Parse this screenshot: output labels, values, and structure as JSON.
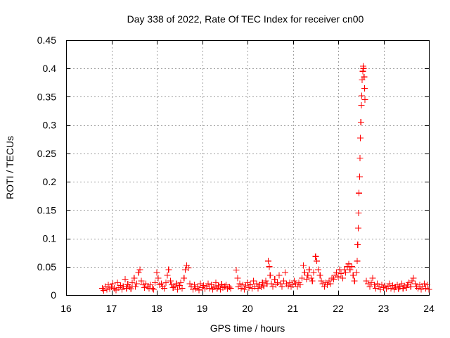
{
  "chart_data": {
    "type": "scatter",
    "title": "Day 338 of 2022, Rate Of TEC Index for receiver cn00",
    "xlabel": "GPS time / hours",
    "ylabel": "ROTI / TECUs",
    "xlim": [
      16,
      24
    ],
    "ylim": [
      0,
      0.45
    ],
    "x_ticks": [
      16,
      17,
      18,
      19,
      20,
      21,
      22,
      23,
      24
    ],
    "x_tick_labels": [
      "16",
      "17",
      "18",
      "19",
      "20",
      "21",
      "22",
      "23",
      "24"
    ],
    "y_ticks": [
      0,
      0.05,
      0.1,
      0.15,
      0.2,
      0.25,
      0.3,
      0.35,
      0.4,
      0.45
    ],
    "y_tick_labels": [
      "0",
      "0.05",
      "0.1",
      "0.15",
      "0.2",
      "0.25",
      "0.3",
      "0.35",
      "0.4",
      "0.45"
    ],
    "grid": true,
    "marker": "+",
    "color": "#ff0000",
    "series": [
      {
        "name": "ROTI",
        "points": [
          [
            16.8,
            0.012
          ],
          [
            16.83,
            0.008
          ],
          [
            16.86,
            0.015
          ],
          [
            16.9,
            0.01
          ],
          [
            16.93,
            0.018
          ],
          [
            16.96,
            0.011
          ],
          [
            17.0,
            0.014
          ],
          [
            17.03,
            0.02
          ],
          [
            17.06,
            0.012
          ],
          [
            17.1,
            0.009
          ],
          [
            17.13,
            0.022
          ],
          [
            17.16,
            0.013
          ],
          [
            17.2,
            0.017
          ],
          [
            17.23,
            0.01
          ],
          [
            17.26,
            0.015
          ],
          [
            17.3,
            0.028
          ],
          [
            17.33,
            0.012
          ],
          [
            17.36,
            0.019
          ],
          [
            17.4,
            0.014
          ],
          [
            17.43,
            0.011
          ],
          [
            17.46,
            0.022
          ],
          [
            17.5,
            0.03
          ],
          [
            17.53,
            0.015
          ],
          [
            17.56,
            0.02
          ],
          [
            17.6,
            0.04
          ],
          [
            17.63,
            0.045
          ],
          [
            17.66,
            0.025
          ],
          [
            17.7,
            0.018
          ],
          [
            17.73,
            0.013
          ],
          [
            17.76,
            0.02
          ],
          [
            17.8,
            0.015
          ],
          [
            17.83,
            0.012
          ],
          [
            17.86,
            0.018
          ],
          [
            17.9,
            0.012
          ],
          [
            17.93,
            0.01
          ],
          [
            17.96,
            0.022
          ],
          [
            18.0,
            0.04
          ],
          [
            18.03,
            0.03
          ],
          [
            18.06,
            0.018
          ],
          [
            18.1,
            0.02
          ],
          [
            18.13,
            0.015
          ],
          [
            18.16,
            0.012
          ],
          [
            18.2,
            0.022
          ],
          [
            18.23,
            0.035
          ],
          [
            18.26,
            0.045
          ],
          [
            18.3,
            0.025
          ],
          [
            18.33,
            0.018
          ],
          [
            18.36,
            0.013
          ],
          [
            18.4,
            0.015
          ],
          [
            18.43,
            0.02
          ],
          [
            18.46,
            0.01
          ],
          [
            18.5,
            0.017
          ],
          [
            18.53,
            0.022
          ],
          [
            18.56,
            0.012
          ],
          [
            18.6,
            0.03
          ],
          [
            18.63,
            0.045
          ],
          [
            18.66,
            0.052
          ],
          [
            18.7,
            0.048
          ],
          [
            18.73,
            0.02
          ],
          [
            18.76,
            0.015
          ],
          [
            18.8,
            0.01
          ],
          [
            18.83,
            0.018
          ],
          [
            18.86,
            0.012
          ],
          [
            18.9,
            0.015
          ],
          [
            18.93,
            0.009
          ],
          [
            18.96,
            0.02
          ],
          [
            19.0,
            0.013
          ],
          [
            19.03,
            0.017
          ],
          [
            19.06,
            0.011
          ],
          [
            19.1,
            0.015
          ],
          [
            19.13,
            0.02
          ],
          [
            19.16,
            0.012
          ],
          [
            19.2,
            0.018
          ],
          [
            19.23,
            0.01
          ],
          [
            19.26,
            0.014
          ],
          [
            19.3,
            0.022
          ],
          [
            19.33,
            0.012
          ],
          [
            19.36,
            0.016
          ],
          [
            19.4,
            0.01
          ],
          [
            19.43,
            0.019
          ],
          [
            19.46,
            0.013
          ],
          [
            19.5,
            0.015
          ],
          [
            19.53,
            0.018
          ],
          [
            19.56,
            0.011
          ],
          [
            19.6,
            0.014
          ],
          [
            19.63,
            0.012
          ],
          [
            19.75,
            0.044
          ],
          [
            19.78,
            0.03
          ],
          [
            19.8,
            0.015
          ],
          [
            19.83,
            0.02
          ],
          [
            19.86,
            0.012
          ],
          [
            19.9,
            0.018
          ],
          [
            19.93,
            0.01
          ],
          [
            19.96,
            0.016
          ],
          [
            20.0,
            0.022
          ],
          [
            20.03,
            0.013
          ],
          [
            20.06,
            0.019
          ],
          [
            20.1,
            0.012
          ],
          [
            20.13,
            0.025
          ],
          [
            20.16,
            0.015
          ],
          [
            20.2,
            0.02
          ],
          [
            20.23,
            0.012
          ],
          [
            20.26,
            0.018
          ],
          [
            20.3,
            0.014
          ],
          [
            20.33,
            0.022
          ],
          [
            20.36,
            0.016
          ],
          [
            20.4,
            0.025
          ],
          [
            20.43,
            0.02
          ],
          [
            20.46,
            0.06
          ],
          [
            20.48,
            0.05
          ],
          [
            20.5,
            0.035
          ],
          [
            20.53,
            0.02
          ],
          [
            20.56,
            0.015
          ],
          [
            20.6,
            0.028
          ],
          [
            20.63,
            0.018
          ],
          [
            20.66,
            0.022
          ],
          [
            20.7,
            0.035
          ],
          [
            20.73,
            0.02
          ],
          [
            20.76,
            0.015
          ],
          [
            20.8,
            0.025
          ],
          [
            20.83,
            0.04
          ],
          [
            20.86,
            0.02
          ],
          [
            20.9,
            0.016
          ],
          [
            20.93,
            0.022
          ],
          [
            20.96,
            0.015
          ],
          [
            21.0,
            0.018
          ],
          [
            21.03,
            0.025
          ],
          [
            21.06,
            0.02
          ],
          [
            21.1,
            0.015
          ],
          [
            21.13,
            0.022
          ],
          [
            21.16,
            0.018
          ],
          [
            21.2,
            0.03
          ],
          [
            21.23,
            0.052
          ],
          [
            21.26,
            0.04
          ],
          [
            21.3,
            0.028
          ],
          [
            21.33,
            0.035
          ],
          [
            21.36,
            0.045
          ],
          [
            21.4,
            0.03
          ],
          [
            21.43,
            0.025
          ],
          [
            21.46,
            0.04
          ],
          [
            21.5,
            0.068
          ],
          [
            21.53,
            0.06
          ],
          [
            21.56,
            0.045
          ],
          [
            21.6,
            0.035
          ],
          [
            21.63,
            0.025
          ],
          [
            21.66,
            0.02
          ],
          [
            21.7,
            0.015
          ],
          [
            21.73,
            0.022
          ],
          [
            21.76,
            0.018
          ],
          [
            21.8,
            0.025
          ],
          [
            21.83,
            0.02
          ],
          [
            21.86,
            0.03
          ],
          [
            21.9,
            0.028
          ],
          [
            21.93,
            0.035
          ],
          [
            21.96,
            0.04
          ],
          [
            22.0,
            0.032
          ],
          [
            22.03,
            0.045
          ],
          [
            22.06,
            0.038
          ],
          [
            22.1,
            0.03
          ],
          [
            22.13,
            0.045
          ],
          [
            22.16,
            0.04
          ],
          [
            22.2,
            0.05
          ],
          [
            22.23,
            0.055
          ],
          [
            22.26,
            0.045
          ],
          [
            22.3,
            0.05
          ],
          [
            22.33,
            0.035
          ],
          [
            22.36,
            0.025
          ],
          [
            22.4,
            0.04
          ],
          [
            22.42,
            0.06
          ],
          [
            22.43,
            0.089
          ],
          [
            22.44,
            0.118
          ],
          [
            22.45,
            0.145
          ],
          [
            22.46,
            0.18
          ],
          [
            22.47,
            0.209
          ],
          [
            22.48,
            0.242
          ],
          [
            22.49,
            0.277
          ],
          [
            22.5,
            0.305
          ],
          [
            22.51,
            0.335
          ],
          [
            22.52,
            0.352
          ],
          [
            22.53,
            0.38
          ],
          [
            22.54,
            0.395
          ],
          [
            22.55,
            0.404
          ],
          [
            22.56,
            0.4
          ],
          [
            22.57,
            0.385
          ],
          [
            22.58,
            0.365
          ],
          [
            22.59,
            0.345
          ],
          [
            22.62,
            0.025
          ],
          [
            22.66,
            0.02
          ],
          [
            22.7,
            0.015
          ],
          [
            22.73,
            0.022
          ],
          [
            22.76,
            0.03
          ],
          [
            22.8,
            0.018
          ],
          [
            22.83,
            0.012
          ],
          [
            22.86,
            0.02
          ],
          [
            22.9,
            0.015
          ],
          [
            22.93,
            0.01
          ],
          [
            22.96,
            0.018
          ],
          [
            23.0,
            0.013
          ],
          [
            23.03,
            0.016
          ],
          [
            23.06,
            0.011
          ],
          [
            23.1,
            0.015
          ],
          [
            23.13,
            0.02
          ],
          [
            23.16,
            0.012
          ],
          [
            23.2,
            0.017
          ],
          [
            23.23,
            0.01
          ],
          [
            23.26,
            0.014
          ],
          [
            23.3,
            0.018
          ],
          [
            23.33,
            0.011
          ],
          [
            23.36,
            0.015
          ],
          [
            23.4,
            0.02
          ],
          [
            23.43,
            0.012
          ],
          [
            23.46,
            0.016
          ],
          [
            23.5,
            0.013
          ],
          [
            23.53,
            0.018
          ],
          [
            23.56,
            0.022
          ],
          [
            23.6,
            0.015
          ],
          [
            23.63,
            0.025
          ],
          [
            23.66,
            0.03
          ],
          [
            23.7,
            0.02
          ],
          [
            23.73,
            0.015
          ],
          [
            23.76,
            0.012
          ],
          [
            23.8,
            0.018
          ],
          [
            23.83,
            0.01
          ],
          [
            23.86,
            0.015
          ],
          [
            23.9,
            0.02
          ],
          [
            23.93,
            0.012
          ],
          [
            23.96,
            0.018
          ],
          [
            24.0,
            0.01
          ]
        ]
      }
    ]
  }
}
